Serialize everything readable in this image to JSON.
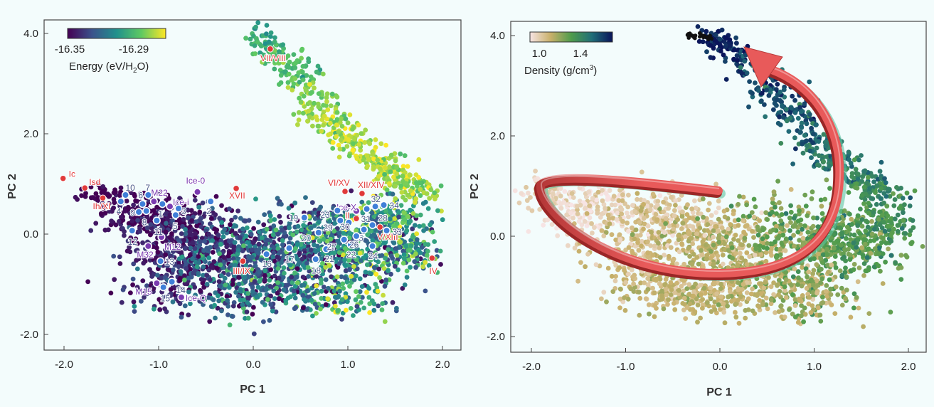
{
  "chart_data": [
    {
      "type": "scatter",
      "xlabel": "PC 1",
      "ylabel": "PC 2",
      "xlim": [
        -2.2,
        2.2
      ],
      "ylim": [
        -2.3,
        4.3
      ],
      "x_ticks": [
        "-2.0",
        "-1.0",
        "0.0",
        "1.0",
        "2.0"
      ],
      "y_ticks": [
        "-2.0",
        "0.0",
        "2.0",
        "4.0"
      ],
      "colorbar": {
        "label_main": "Energy (eV/H",
        "label_sub": "2",
        "label_end": "O)",
        "tick_labels": [
          "-16.35",
          "-16.29"
        ],
        "colormap": [
          "#440154",
          "#3b528b",
          "#21918c",
          "#5ec962",
          "#fde725"
        ]
      },
      "point_colors": {
        "experimental": "#e03a3a",
        "numbered": "#3f7fd8",
        "other": "#7a3bb0"
      },
      "labeled_points": [
        {
          "label": "Ic",
          "x": -2.01,
          "y": 1.11,
          "kind": "experimental"
        },
        {
          "label": "Isd",
          "x": -1.78,
          "y": 0.92,
          "kind": "experimental"
        },
        {
          "label": "Ih/XI",
          "x": -1.59,
          "y": 0.72,
          "kind": "experimental"
        },
        {
          "label": "XVII",
          "x": -0.18,
          "y": 0.91,
          "kind": "experimental"
        },
        {
          "label": "III/IX",
          "x": -0.11,
          "y": -0.54,
          "kind": "experimental"
        },
        {
          "label": "VII/VIII",
          "x": 0.18,
          "y": 3.69,
          "kind": "experimental"
        },
        {
          "label": "VI/XV",
          "x": 0.97,
          "y": 0.85,
          "kind": "experimental"
        },
        {
          "label": "XII/XIV",
          "x": 1.15,
          "y": 0.81,
          "kind": "experimental"
        },
        {
          "label": "II",
          "x": 1.09,
          "y": 0.31,
          "kind": "experimental"
        },
        {
          "label": "V/XIII",
          "x": 1.34,
          "y": 0.14,
          "kind": "experimental"
        },
        {
          "label": "IV",
          "x": 1.89,
          "y": -0.48,
          "kind": "experimental"
        },
        {
          "label": "M22",
          "x": -1.05,
          "y": 0.65,
          "kind": "other"
        },
        {
          "label": "Ice-0",
          "x": -0.59,
          "y": 0.84,
          "kind": "other"
        },
        {
          "label": "Ice-i",
          "x": -0.88,
          "y": 0.55,
          "kind": "other"
        },
        {
          "label": "M12",
          "x": -0.97,
          "y": -0.06,
          "kind": "other"
        },
        {
          "label": "M32",
          "x": -1.11,
          "y": -0.24,
          "kind": "other"
        },
        {
          "label": "M15",
          "x": -1.02,
          "y": -0.98,
          "kind": "other"
        },
        {
          "label": "Ice-Q",
          "x": -0.76,
          "y": -1.26,
          "kind": "other"
        },
        {
          "label": "Ice-X",
          "x": 1.09,
          "y": 0.46,
          "kind": "other"
        },
        {
          "label": "1",
          "x": -0.96,
          "y": 0.6,
          "kind": "numbered"
        },
        {
          "label": "2",
          "x": -0.45,
          "y": 0.65,
          "kind": "numbered"
        },
        {
          "label": "3",
          "x": -0.79,
          "y": 0.51,
          "kind": "numbered"
        },
        {
          "label": "4",
          "x": -1.4,
          "y": 0.65,
          "kind": "numbered"
        },
        {
          "label": "5",
          "x": -0.82,
          "y": 0.38,
          "kind": "numbered"
        },
        {
          "label": "6",
          "x": -1.17,
          "y": 0.6,
          "kind": "numbered"
        },
        {
          "label": "7",
          "x": -1.11,
          "y": 0.78,
          "kind": "numbered"
        },
        {
          "label": "8",
          "x": -1.13,
          "y": 0.46,
          "kind": "numbered"
        },
        {
          "label": "9",
          "x": -1.21,
          "y": 0.44,
          "kind": "numbered"
        },
        {
          "label": "10",
          "x": -1.35,
          "y": 0.78,
          "kind": "numbered"
        },
        {
          "label": "11",
          "x": -1.02,
          "y": 0.27,
          "kind": "numbered"
        },
        {
          "label": "12",
          "x": -1.28,
          "y": 0.07,
          "kind": "numbered"
        },
        {
          "label": "13",
          "x": -0.98,
          "y": -0.54,
          "kind": "numbered"
        },
        {
          "label": "14",
          "x": -0.86,
          "y": -0.95,
          "kind": "numbered"
        },
        {
          "label": "15",
          "x": -0.95,
          "y": -1.06,
          "kind": "numbered"
        },
        {
          "label": "16",
          "x": 0.14,
          "y": -0.4,
          "kind": "numbered"
        },
        {
          "label": "17",
          "x": 0.38,
          "y": -0.28,
          "kind": "numbered"
        },
        {
          "label": "18",
          "x": 0.66,
          "y": -0.5,
          "kind": "numbered"
        },
        {
          "label": "19",
          "x": 0.54,
          "y": 0.33,
          "kind": "numbered"
        },
        {
          "label": "20",
          "x": 0.69,
          "y": 0.03,
          "kind": "numbered"
        },
        {
          "label": "21",
          "x": 0.77,
          "y": -0.3,
          "kind": "numbered"
        },
        {
          "label": "22",
          "x": 1.03,
          "y": -0.21,
          "kind": "numbered"
        },
        {
          "label": "23",
          "x": 0.89,
          "y": 0.47,
          "kind": "numbered"
        },
        {
          "label": "24",
          "x": 1.26,
          "y": -0.24,
          "kind": "numbered"
        },
        {
          "label": "25",
          "x": 1.17,
          "y": 0.09,
          "kind": "numbered"
        },
        {
          "label": "26",
          "x": 1.09,
          "y": -0.04,
          "kind": "numbered"
        },
        {
          "label": "27",
          "x": 0.96,
          "y": -0.11,
          "kind": "numbered"
        },
        {
          "label": "28",
          "x": 1.26,
          "y": 0.18,
          "kind": "numbered"
        },
        {
          "label": "29",
          "x": 0.92,
          "y": 0.27,
          "kind": "numbered"
        },
        {
          "label": "30",
          "x": 1.01,
          "y": 0.23,
          "kind": "numbered"
        },
        {
          "label": "31",
          "x": 1.2,
          "y": 0.5,
          "kind": "numbered"
        },
        {
          "label": "32",
          "x": 1.29,
          "y": 0.55,
          "kind": "numbered"
        },
        {
          "label": "33",
          "x": 1.41,
          "y": 0.07,
          "kind": "numbered"
        },
        {
          "label": "34",
          "x": 1.38,
          "y": 0.58,
          "kind": "numbered"
        }
      ]
    },
    {
      "type": "scatter",
      "xlabel": "PC 1",
      "ylabel": "PC 2",
      "xlim": [
        -2.2,
        2.2
      ],
      "ylim": [
        -2.3,
        4.3
      ],
      "x_ticks": [
        "-2.0",
        "-1.0",
        "0.0",
        "1.0",
        "2.0"
      ],
      "y_ticks": [
        "-2.0",
        "0.0",
        "2.0",
        "4.0"
      ],
      "colorbar": {
        "label_main": "Density (g/cm",
        "label_sup": "3",
        "label_end": ")",
        "tick_labels": [
          "1.0",
          "1.4"
        ],
        "colormap": [
          "#f7e4e4",
          "#c8b06a",
          "#4f9c4c",
          "#216e78",
          "#0a145a"
        ]
      },
      "arrow_color": "#e85a5a"
    }
  ]
}
